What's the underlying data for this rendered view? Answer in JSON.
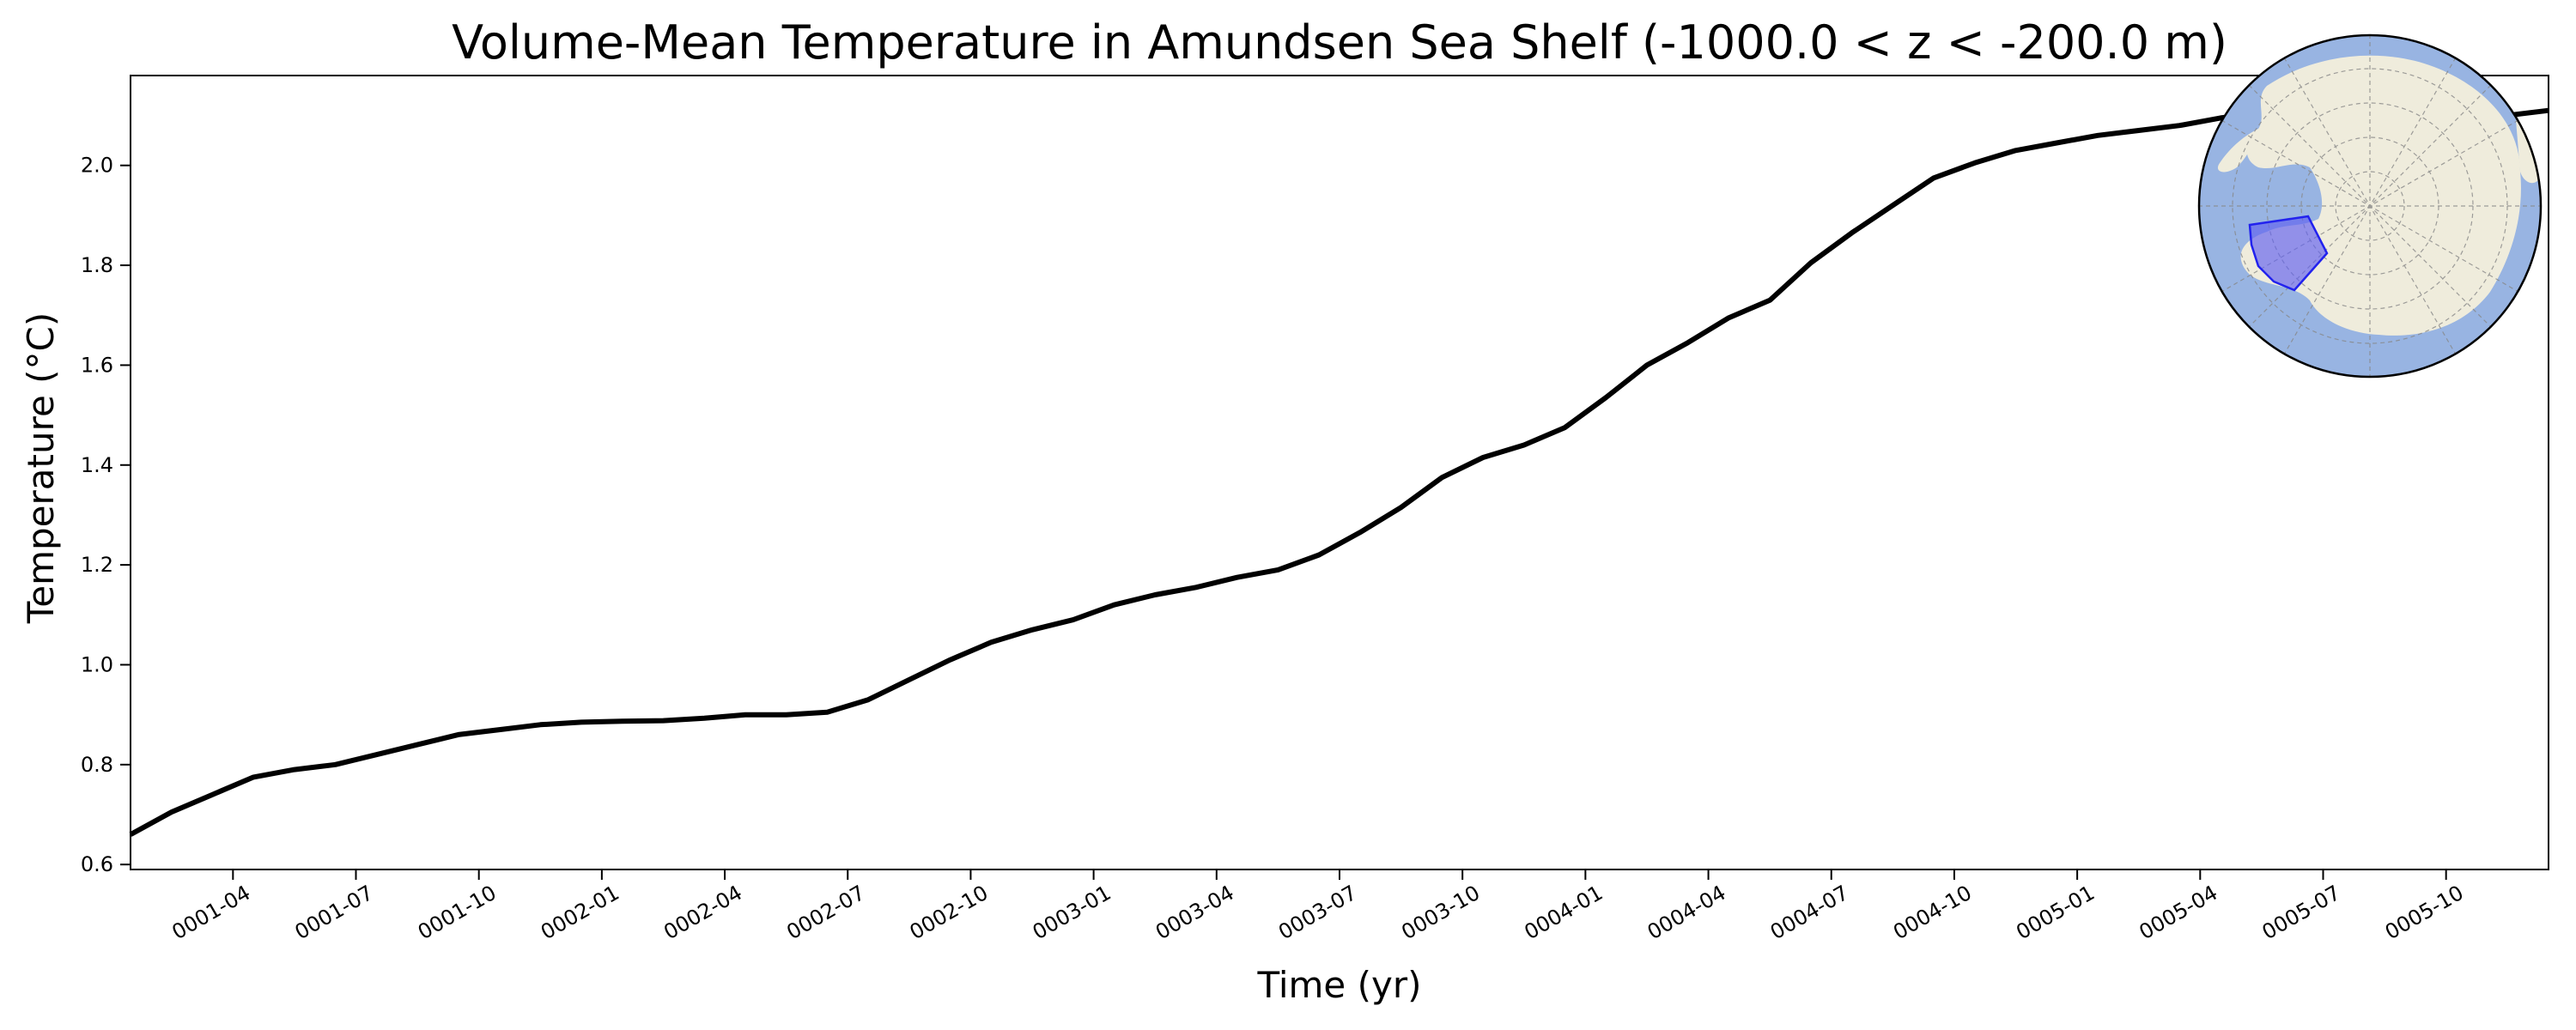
{
  "chart_data": {
    "type": "line",
    "title": "Volume-Mean Temperature in Amundsen Sea Shelf (-1000.0 < z < -200.0 m)",
    "xlabel": "Time (yr)",
    "ylabel": "Temperature (°C)",
    "ylim": [
      0.59,
      2.18
    ],
    "xlim": [
      "0001-01-16",
      "0005-12-16"
    ],
    "y_ticks": [
      0.6,
      0.8,
      1.0,
      1.2,
      1.4,
      1.6,
      1.8,
      2.0
    ],
    "y_tick_labels": [
      "0.6",
      "0.8",
      "1.0",
      "1.2",
      "1.4",
      "1.6",
      "1.8",
      "2.0"
    ],
    "x_ticks": [
      "0001-04",
      "0001-07",
      "0001-10",
      "0002-01",
      "0002-04",
      "0002-07",
      "0002-10",
      "0003-01",
      "0003-04",
      "0003-07",
      "0003-10",
      "0004-01",
      "0004-04",
      "0004-07",
      "0004-10",
      "0005-01",
      "0005-04",
      "0005-07",
      "0005-10"
    ],
    "grid": false,
    "line_color": "#000000",
    "series": [
      {
        "x": [
          "0001-01",
          "0001-02",
          "0001-03",
          "0001-04",
          "0001-05",
          "0001-06",
          "0001-07",
          "0001-08",
          "0001-09",
          "0001-10",
          "0001-11",
          "0001-12",
          "0002-01",
          "0002-02",
          "0002-03",
          "0002-04",
          "0002-05",
          "0002-06",
          "0002-07",
          "0002-08",
          "0002-09",
          "0002-10",
          "0002-11",
          "0002-12",
          "0003-01",
          "0003-02",
          "0003-03",
          "0003-04",
          "0003-05",
          "0003-06",
          "0003-07",
          "0003-08",
          "0003-09",
          "0003-10",
          "0003-11",
          "0003-12",
          "0004-01",
          "0004-02",
          "0004-03",
          "0004-04",
          "0004-05",
          "0004-06",
          "0004-07",
          "0004-08",
          "0004-09",
          "0004-10",
          "0004-11",
          "0004-12",
          "0005-01",
          "0005-02",
          "0005-03",
          "0005-04",
          "0005-05",
          "0005-06",
          "0005-07",
          "0005-08",
          "0005-09",
          "0005-10",
          "0005-11",
          "0005-12"
        ],
        "y": [
          0.66,
          0.705,
          0.74,
          0.775,
          0.79,
          0.8,
          0.82,
          0.84,
          0.86,
          0.87,
          0.88,
          0.885,
          0.887,
          0.888,
          0.893,
          0.9,
          0.9,
          0.905,
          0.93,
          0.97,
          1.01,
          1.045,
          1.07,
          1.09,
          1.12,
          1.14,
          1.155,
          1.175,
          1.19,
          1.22,
          1.265,
          1.315,
          1.375,
          1.415,
          1.44,
          1.475,
          1.535,
          1.6,
          1.645,
          1.695,
          1.73,
          1.805,
          1.865,
          1.92,
          1.975,
          2.005,
          2.03,
          2.045,
          2.06,
          2.07,
          2.08,
          2.095,
          2.105,
          2.115,
          2.115,
          2.095,
          2.085,
          2.09,
          2.1,
          2.11
        ]
      }
    ]
  },
  "inset_map": {
    "ocean_color": "#98b4e2",
    "land_color": "#efecdc",
    "region_color": "#5f5ff0",
    "region_edge_color": "#2222ee"
  }
}
